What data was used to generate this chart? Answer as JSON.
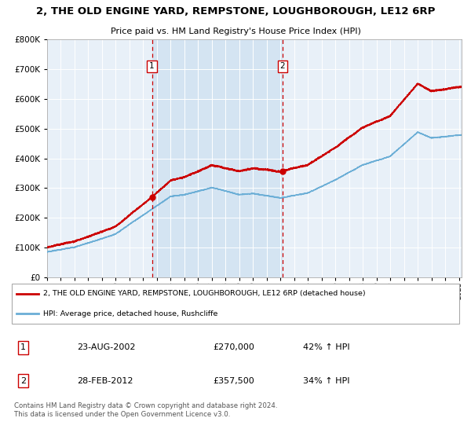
{
  "title": "2, THE OLD ENGINE YARD, REMPSTONE, LOUGHBOROUGH, LE12 6RP",
  "subtitle": "Price paid vs. HM Land Registry's House Price Index (HPI)",
  "legend_line1": "2, THE OLD ENGINE YARD, REMPSTONE, LOUGHBOROUGH, LE12 6RP (detached house)",
  "legend_line2": "HPI: Average price, detached house, Rushcliffe",
  "footer": "Contains HM Land Registry data © Crown copyright and database right 2024.\nThis data is licensed under the Open Government Licence v3.0.",
  "sale1_date": "23-AUG-2002",
  "sale1_price": "£270,000",
  "sale1_hpi": "42% ↑ HPI",
  "sale2_date": "28-FEB-2012",
  "sale2_price": "£357,500",
  "sale2_hpi": "34% ↑ HPI",
  "sale1_label": "1",
  "sale2_label": "2",
  "sale1_x": 2002.64,
  "sale2_x": 2012.16,
  "hpi_color": "#6baed6",
  "price_color": "#cc0000",
  "shade_color": "#cce0f0",
  "bg_color": "#e8f0f8",
  "ylim_max": 800000,
  "xlim_start": 1995,
  "xlim_end": 2025.2
}
